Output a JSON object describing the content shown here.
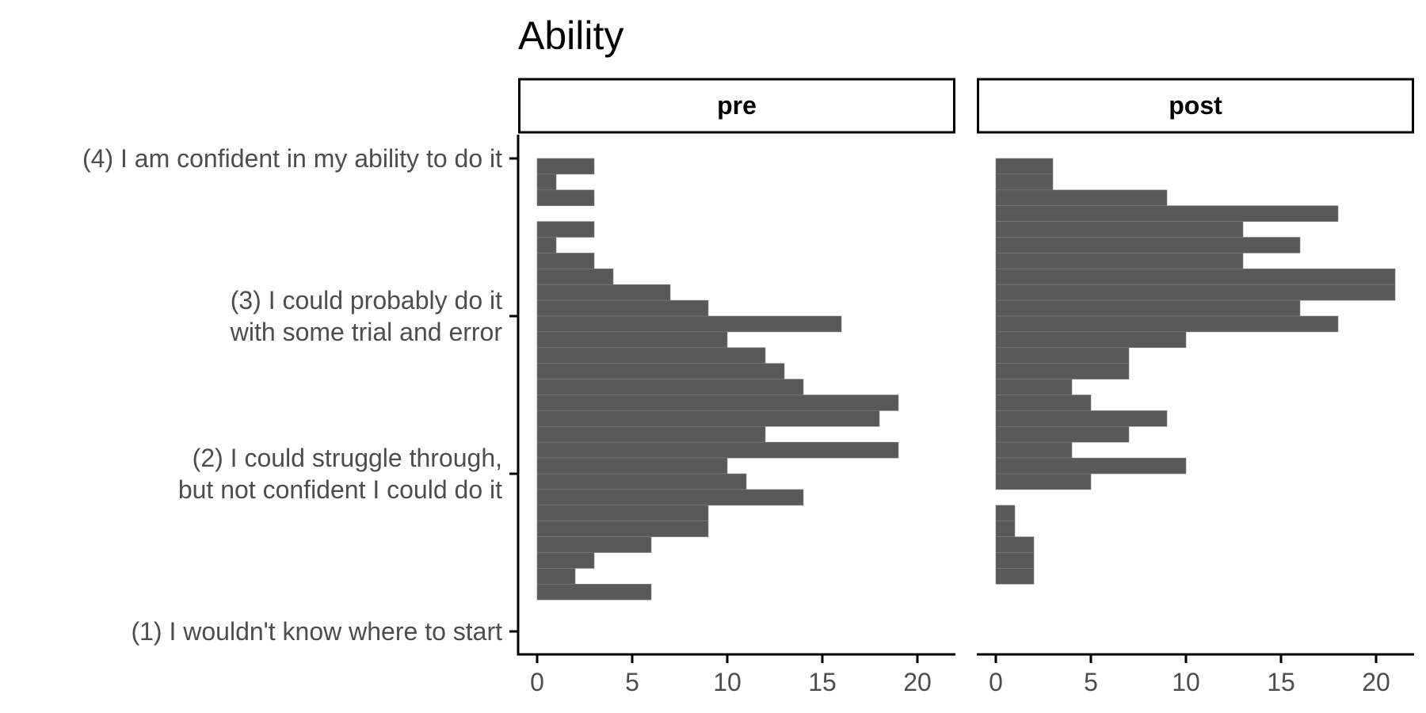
{
  "chart_data": {
    "type": "histogram",
    "orientation": "horizontal",
    "title": "Ability",
    "facets": [
      "pre",
      "post"
    ],
    "y_range": [
      1,
      4
    ],
    "y_ticks": [
      {
        "value": 4,
        "label": [
          "(4) I am confident in my ability to do it"
        ]
      },
      {
        "value": 3,
        "label": [
          "(3) I could probably do it",
          "with some trial and error"
        ]
      },
      {
        "value": 2,
        "label": [
          "(2) I could struggle through,",
          "but not confident I could do it"
        ]
      },
      {
        "value": 1,
        "label": [
          "(1) I wouldn't know where to start"
        ]
      }
    ],
    "x_range": [
      -1,
      22
    ],
    "x_ticks": [
      0,
      5,
      10,
      15,
      20
    ],
    "bins": [
      {
        "y": 3.95,
        "pre": 3,
        "post": 3
      },
      {
        "y": 3.85,
        "pre": 1,
        "post": 3
      },
      {
        "y": 3.75,
        "pre": 3,
        "post": 9
      },
      {
        "y": 3.65,
        "pre": 0,
        "post": 18
      },
      {
        "y": 3.55,
        "pre": 3,
        "post": 13
      },
      {
        "y": 3.45,
        "pre": 1,
        "post": 16
      },
      {
        "y": 3.35,
        "pre": 3,
        "post": 13
      },
      {
        "y": 3.25,
        "pre": 4,
        "post": 21
      },
      {
        "y": 3.15,
        "pre": 7,
        "post": 21
      },
      {
        "y": 3.05,
        "pre": 9,
        "post": 16
      },
      {
        "y": 2.95,
        "pre": 16,
        "post": 18
      },
      {
        "y": 2.85,
        "pre": 10,
        "post": 10
      },
      {
        "y": 2.75,
        "pre": 12,
        "post": 7
      },
      {
        "y": 2.65,
        "pre": 13,
        "post": 7
      },
      {
        "y": 2.55,
        "pre": 14,
        "post": 4
      },
      {
        "y": 2.45,
        "pre": 19,
        "post": 5
      },
      {
        "y": 2.35,
        "pre": 18,
        "post": 9
      },
      {
        "y": 2.25,
        "pre": 12,
        "post": 7
      },
      {
        "y": 2.15,
        "pre": 19,
        "post": 4
      },
      {
        "y": 2.05,
        "pre": 10,
        "post": 10
      },
      {
        "y": 1.95,
        "pre": 11,
        "post": 5
      },
      {
        "y": 1.85,
        "pre": 14,
        "post": 0
      },
      {
        "y": 1.75,
        "pre": 9,
        "post": 1
      },
      {
        "y": 1.65,
        "pre": 9,
        "post": 1
      },
      {
        "y": 1.55,
        "pre": 6,
        "post": 2
      },
      {
        "y": 1.45,
        "pre": 3,
        "post": 2
      },
      {
        "y": 1.35,
        "pre": 2,
        "post": 2
      },
      {
        "y": 1.25,
        "pre": 6,
        "post": 0
      }
    ],
    "bin_width": 0.1,
    "colors": {
      "bar": "#595959",
      "bar_edge": "#808080",
      "axis": "#000000",
      "text": "#4d4d4d",
      "strip_fill": "#ffffff"
    },
    "grid": false,
    "legend": "none"
  }
}
